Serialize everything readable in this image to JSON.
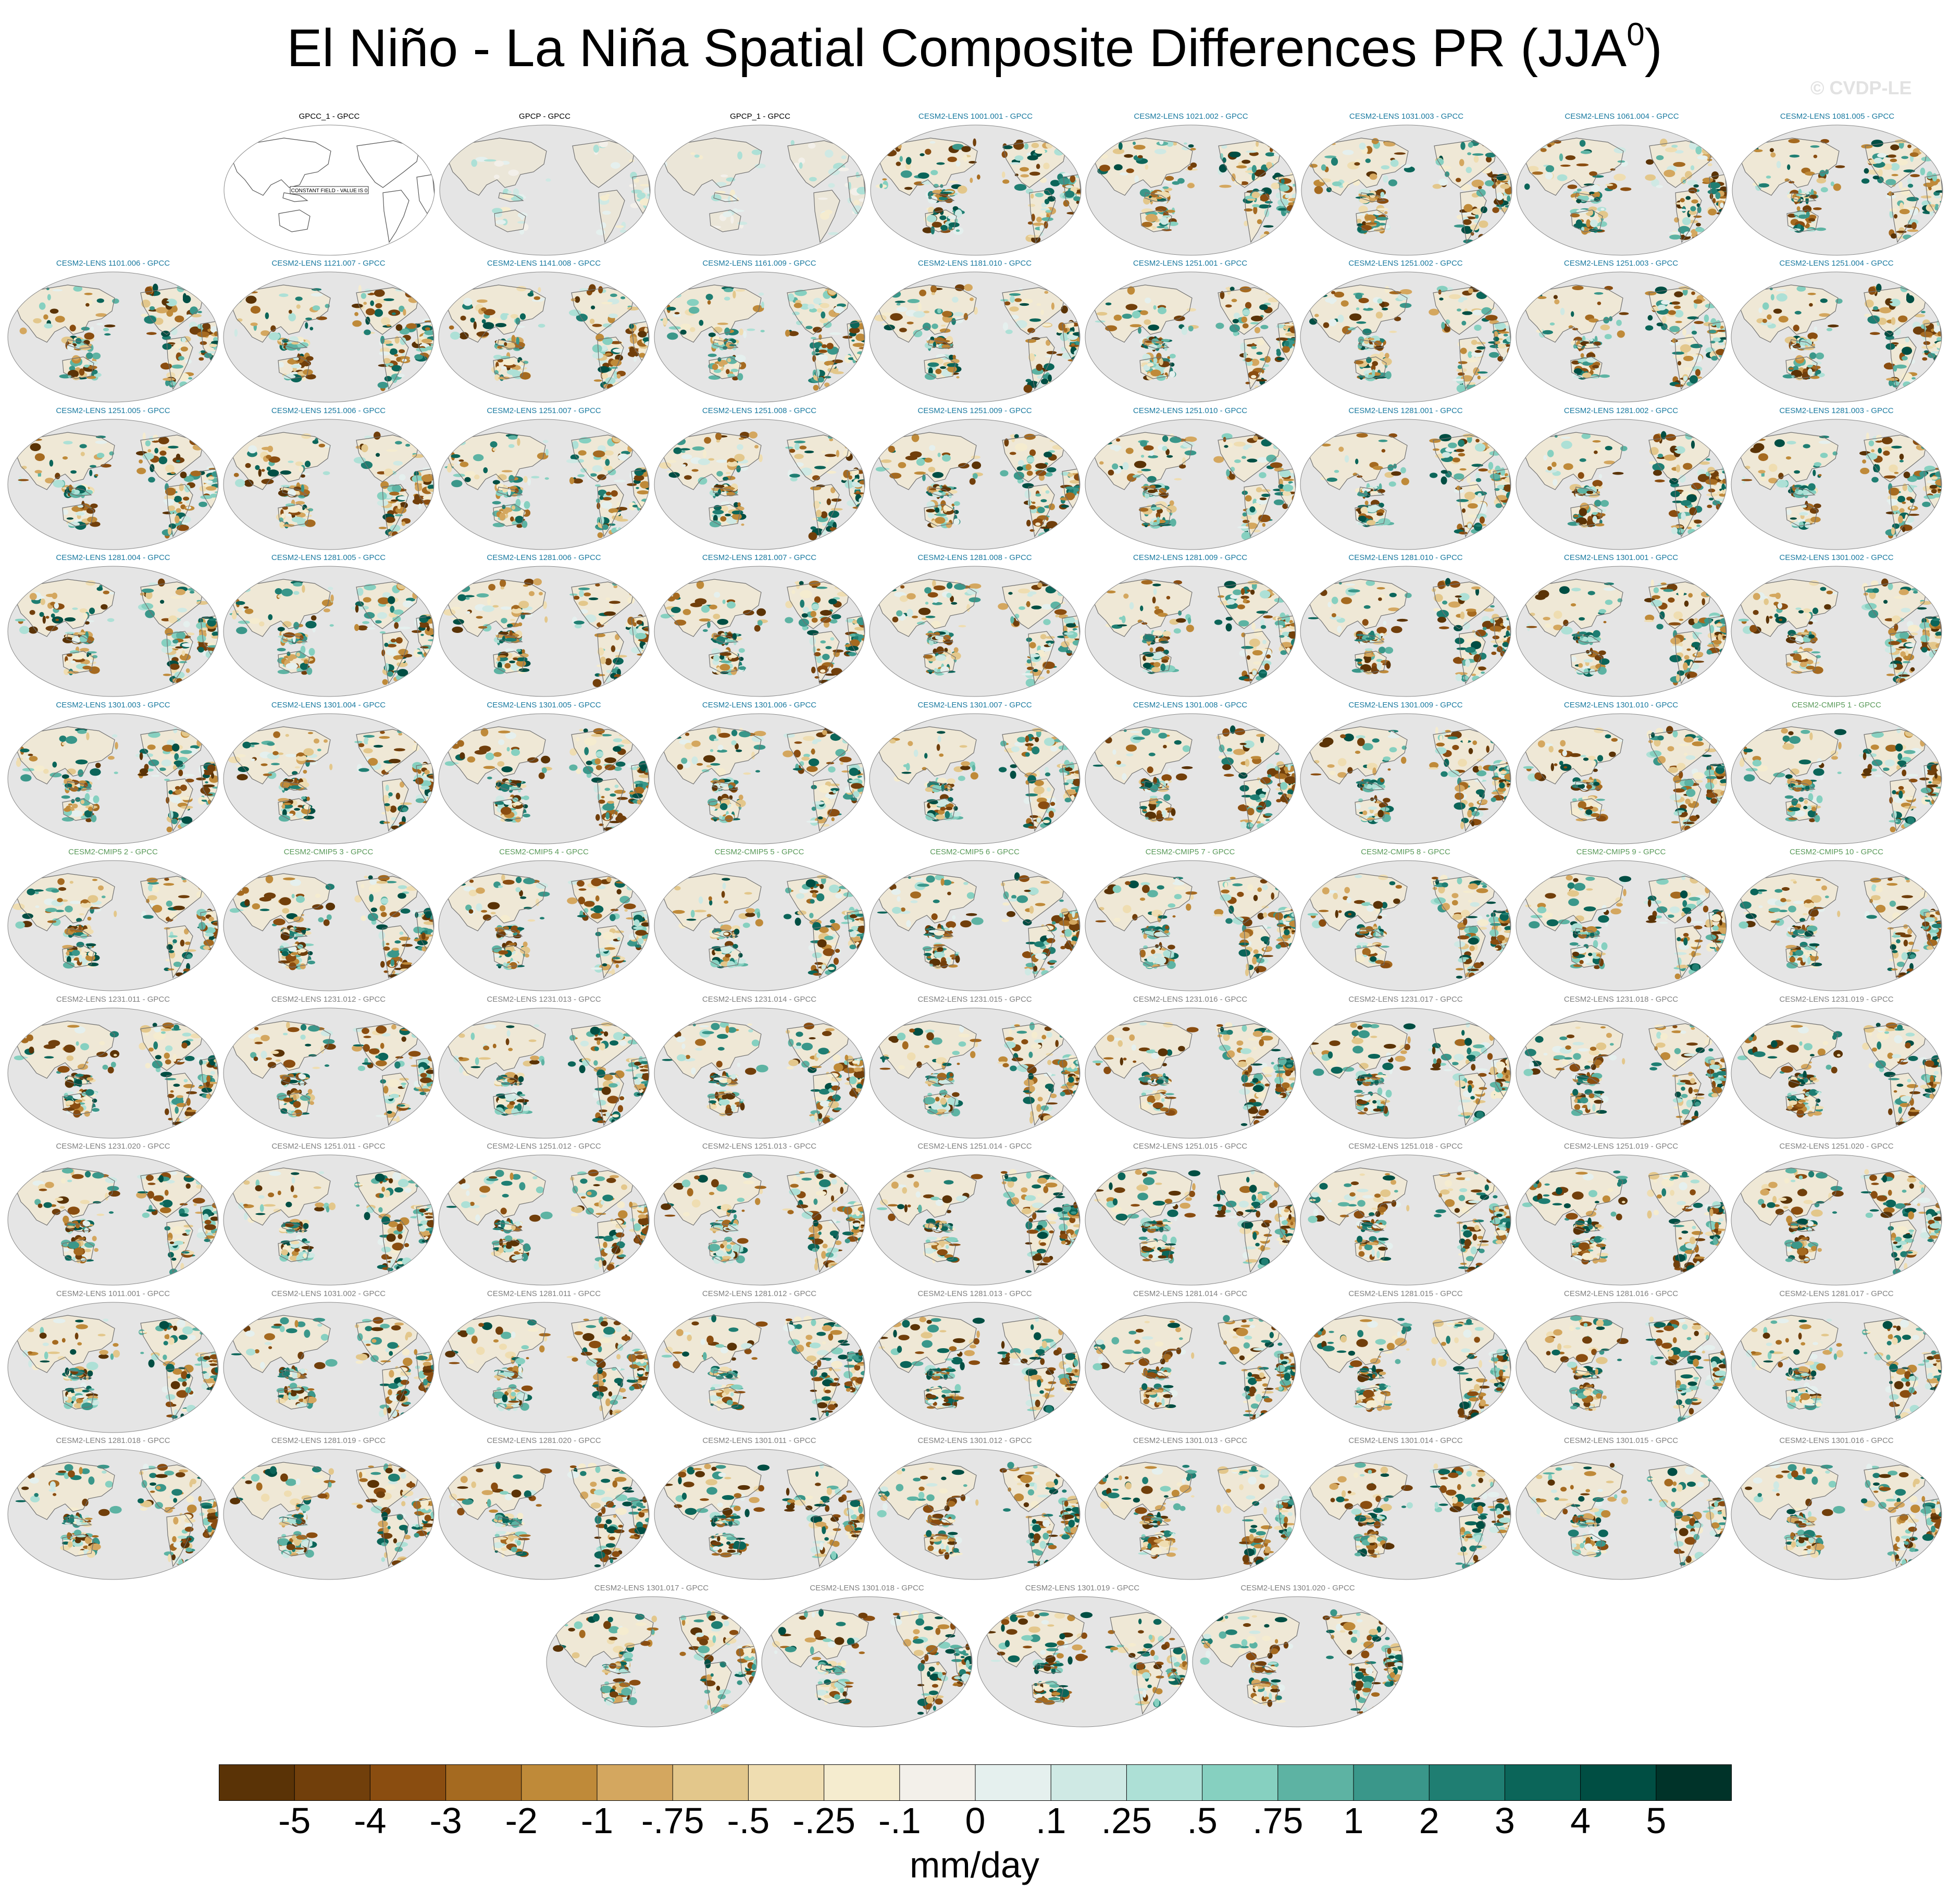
{
  "title": "El Niño - La Niña Spatial Composite Differences PR (JJA",
  "title_sup": "0",
  "title_close": ")",
  "watermark": "© CVDP-LE",
  "colors": {
    "obs_title": "#000000",
    "lens_title": "#1a7aa0",
    "cmip5_title": "#5a9a5a",
    "grey_title": "#808080",
    "ocean": "#e5e5e5",
    "coast": "#707070"
  },
  "chart_data": {
    "type": "map-grid",
    "title": "El Niño - La Niña Spatial Composite Differences PR (JJA0)",
    "rows": [
      {
        "panels": [
          {
            "label": "GPCC_1 - GPCC",
            "style": "obs",
            "note": "CONSTANT FIELD - VALUE IS 0"
          },
          {
            "label": "GPCP - GPCC",
            "style": "obs"
          },
          {
            "label": "GPCP_1 - GPCC",
            "style": "obs"
          },
          {
            "label": "CESM2-LENS 1001.001 - GPCC",
            "style": "lens"
          },
          {
            "label": "CESM2-LENS 1021.002 - GPCC",
            "style": "lens"
          },
          {
            "label": "CESM2-LENS 1031.003 - GPCC",
            "style": "lens"
          },
          {
            "label": "CESM2-LENS 1061.004 - GPCC",
            "style": "lens"
          },
          {
            "label": "CESM2-LENS 1081.005 - GPCC",
            "style": "lens"
          }
        ]
      },
      {
        "panels": [
          {
            "label": "CESM2-LENS 1101.006 - GPCC",
            "style": "lens"
          },
          {
            "label": "CESM2-LENS 1121.007 - GPCC",
            "style": "lens"
          },
          {
            "label": "CESM2-LENS 1141.008 - GPCC",
            "style": "lens"
          },
          {
            "label": "CESM2-LENS 1161.009 - GPCC",
            "style": "lens"
          },
          {
            "label": "CESM2-LENS 1181.010 - GPCC",
            "style": "lens"
          },
          {
            "label": "CESM2-LENS 1251.001 - GPCC",
            "style": "lens"
          },
          {
            "label": "CESM2-LENS 1251.002 - GPCC",
            "style": "lens"
          },
          {
            "label": "CESM2-LENS 1251.003 - GPCC",
            "style": "lens"
          },
          {
            "label": "CESM2-LENS 1251.004 - GPCC",
            "style": "lens"
          }
        ]
      },
      {
        "panels": [
          {
            "label": "CESM2-LENS 1251.005 - GPCC",
            "style": "lens"
          },
          {
            "label": "CESM2-LENS 1251.006 - GPCC",
            "style": "lens"
          },
          {
            "label": "CESM2-LENS 1251.007 - GPCC",
            "style": "lens"
          },
          {
            "label": "CESM2-LENS 1251.008 - GPCC",
            "style": "lens"
          },
          {
            "label": "CESM2-LENS 1251.009 - GPCC",
            "style": "lens"
          },
          {
            "label": "CESM2-LENS 1251.010 - GPCC",
            "style": "lens"
          },
          {
            "label": "CESM2-LENS 1281.001 - GPCC",
            "style": "lens"
          },
          {
            "label": "CESM2-LENS 1281.002 - GPCC",
            "style": "lens"
          },
          {
            "label": "CESM2-LENS 1281.003 - GPCC",
            "style": "lens"
          }
        ]
      },
      {
        "panels": [
          {
            "label": "CESM2-LENS 1281.004 - GPCC",
            "style": "lens"
          },
          {
            "label": "CESM2-LENS 1281.005 - GPCC",
            "style": "lens"
          },
          {
            "label": "CESM2-LENS 1281.006 - GPCC",
            "style": "lens"
          },
          {
            "label": "CESM2-LENS 1281.007 - GPCC",
            "style": "lens"
          },
          {
            "label": "CESM2-LENS 1281.008 - GPCC",
            "style": "lens"
          },
          {
            "label": "CESM2-LENS 1281.009 - GPCC",
            "style": "lens"
          },
          {
            "label": "CESM2-LENS 1281.010 - GPCC",
            "style": "lens"
          },
          {
            "label": "CESM2-LENS 1301.001 - GPCC",
            "style": "lens"
          },
          {
            "label": "CESM2-LENS 1301.002 - GPCC",
            "style": "lens"
          }
        ]
      },
      {
        "panels": [
          {
            "label": "CESM2-LENS 1301.003 - GPCC",
            "style": "lens"
          },
          {
            "label": "CESM2-LENS 1301.004 - GPCC",
            "style": "lens"
          },
          {
            "label": "CESM2-LENS 1301.005 - GPCC",
            "style": "lens"
          },
          {
            "label": "CESM2-LENS 1301.006 - GPCC",
            "style": "lens"
          },
          {
            "label": "CESM2-LENS 1301.007 - GPCC",
            "style": "lens"
          },
          {
            "label": "CESM2-LENS 1301.008 - GPCC",
            "style": "lens"
          },
          {
            "label": "CESM2-LENS 1301.009 - GPCC",
            "style": "lens"
          },
          {
            "label": "CESM2-LENS 1301.010 - GPCC",
            "style": "lens"
          },
          {
            "label": "CESM2-CMIP5 1 - GPCC",
            "style": "cmip5"
          }
        ]
      },
      {
        "panels": [
          {
            "label": "CESM2-CMIP5 2 - GPCC",
            "style": "cmip5"
          },
          {
            "label": "CESM2-CMIP5 3 - GPCC",
            "style": "cmip5"
          },
          {
            "label": "CESM2-CMIP5 4 - GPCC",
            "style": "cmip5"
          },
          {
            "label": "CESM2-CMIP5 5 - GPCC",
            "style": "cmip5"
          },
          {
            "label": "CESM2-CMIP5 6 - GPCC",
            "style": "cmip5"
          },
          {
            "label": "CESM2-CMIP5 7 - GPCC",
            "style": "cmip5"
          },
          {
            "label": "CESM2-CMIP5 8 - GPCC",
            "style": "cmip5"
          },
          {
            "label": "CESM2-CMIP5 9 - GPCC",
            "style": "cmip5"
          },
          {
            "label": "CESM2-CMIP5 10 - GPCC",
            "style": "cmip5"
          }
        ]
      },
      {
        "panels": [
          {
            "label": "CESM2-LENS 1231.011 - GPCC",
            "style": "grey"
          },
          {
            "label": "CESM2-LENS 1231.012 - GPCC",
            "style": "grey"
          },
          {
            "label": "CESM2-LENS 1231.013 - GPCC",
            "style": "grey"
          },
          {
            "label": "CESM2-LENS 1231.014 - GPCC",
            "style": "grey"
          },
          {
            "label": "CESM2-LENS 1231.015 - GPCC",
            "style": "grey"
          },
          {
            "label": "CESM2-LENS 1231.016 - GPCC",
            "style": "grey"
          },
          {
            "label": "CESM2-LENS 1231.017 - GPCC",
            "style": "grey"
          },
          {
            "label": "CESM2-LENS 1231.018 - GPCC",
            "style": "grey"
          },
          {
            "label": "CESM2-LENS 1231.019 - GPCC",
            "style": "grey"
          }
        ]
      },
      {
        "panels": [
          {
            "label": "CESM2-LENS 1231.020 - GPCC",
            "style": "grey"
          },
          {
            "label": "CESM2-LENS 1251.011 - GPCC",
            "style": "grey"
          },
          {
            "label": "CESM2-LENS 1251.012 - GPCC",
            "style": "grey"
          },
          {
            "label": "CESM2-LENS 1251.013 - GPCC",
            "style": "grey"
          },
          {
            "label": "CESM2-LENS 1251.014 - GPCC",
            "style": "grey"
          },
          {
            "label": "CESM2-LENS 1251.015 - GPCC",
            "style": "grey"
          },
          {
            "label": "CESM2-LENS 1251.018 - GPCC",
            "style": "grey"
          },
          {
            "label": "CESM2-LENS 1251.019 - GPCC",
            "style": "grey"
          },
          {
            "label": "CESM2-LENS 1251.020 - GPCC",
            "style": "grey"
          }
        ]
      },
      {
        "panels": [
          {
            "label": "CESM2-LENS 1011.001 - GPCC",
            "style": "grey"
          },
          {
            "label": "CESM2-LENS 1031.002 - GPCC",
            "style": "grey"
          },
          {
            "label": "CESM2-LENS 1281.011 - GPCC",
            "style": "grey"
          },
          {
            "label": "CESM2-LENS 1281.012 - GPCC",
            "style": "grey"
          },
          {
            "label": "CESM2-LENS 1281.013 - GPCC",
            "style": "grey"
          },
          {
            "label": "CESM2-LENS 1281.014 - GPCC",
            "style": "grey"
          },
          {
            "label": "CESM2-LENS 1281.015 - GPCC",
            "style": "grey"
          },
          {
            "label": "CESM2-LENS 1281.016 - GPCC",
            "style": "grey"
          },
          {
            "label": "CESM2-LENS 1281.017 - GPCC",
            "style": "grey"
          }
        ]
      },
      {
        "panels": [
          {
            "label": "CESM2-LENS 1281.018 - GPCC",
            "style": "grey"
          },
          {
            "label": "CESM2-LENS 1281.019 - GPCC",
            "style": "grey"
          },
          {
            "label": "CESM2-LENS 1281.020 - GPCC",
            "style": "grey"
          },
          {
            "label": "CESM2-LENS 1301.011 - GPCC",
            "style": "grey"
          },
          {
            "label": "CESM2-LENS 1301.012 - GPCC",
            "style": "grey"
          },
          {
            "label": "CESM2-LENS 1301.013 - GPCC",
            "style": "grey"
          },
          {
            "label": "CESM2-LENS 1301.014 - GPCC",
            "style": "grey"
          },
          {
            "label": "CESM2-LENS 1301.015 - GPCC",
            "style": "grey"
          },
          {
            "label": "CESM2-LENS 1301.016 - GPCC",
            "style": "grey"
          }
        ]
      },
      {
        "panels": [
          {
            "label": "CESM2-LENS 1301.017 - GPCC",
            "style": "grey"
          },
          {
            "label": "CESM2-LENS 1301.018 - GPCC",
            "style": "grey"
          },
          {
            "label": "CESM2-LENS 1301.019 - GPCC",
            "style": "grey"
          },
          {
            "label": "CESM2-LENS 1301.020 - GPCC",
            "style": "grey"
          }
        ]
      }
    ],
    "colorbar": {
      "labels": [
        "-5",
        "-4",
        "-3",
        "-2",
        "-1",
        "-.75",
        "-.5",
        "-.25",
        "-.1",
        "0",
        ".1",
        ".25",
        ".5",
        ".75",
        "1",
        "2",
        "3",
        "4",
        "5"
      ],
      "colors": [
        "#5a3306",
        "#713f0b",
        "#8a4d10",
        "#a56a20",
        "#bf8a39",
        "#d4a75f",
        "#e3c78b",
        "#efddb1",
        "#f5eccf",
        "#f3f0ea",
        "#e5f0ee",
        "#cfe9e4",
        "#ade0d6",
        "#86d0c0",
        "#5db3a3",
        "#3a978a",
        "#1f7e72",
        "#0b6559",
        "#004e43",
        "#003329"
      ],
      "units": "mm/day"
    }
  }
}
